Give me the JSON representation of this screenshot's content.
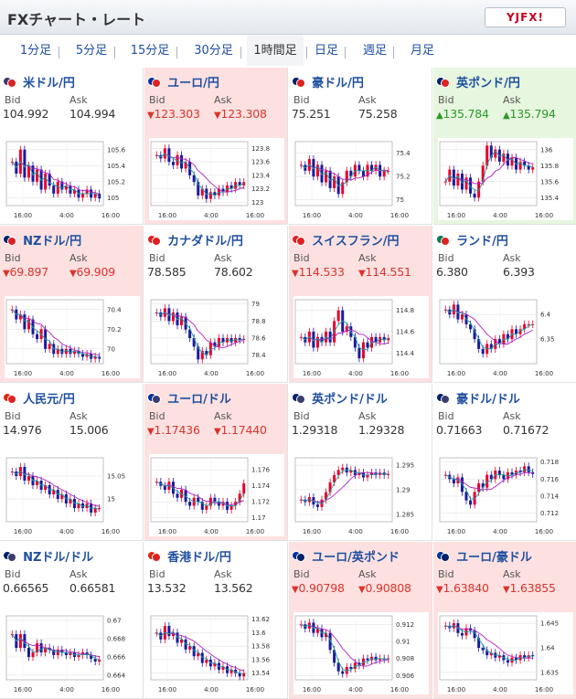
{
  "header": {
    "title": "FXチャート・レート",
    "logo_text": "YJFX!"
  },
  "tabs": [
    {
      "label": "1分足",
      "active": false
    },
    {
      "label": "5分足",
      "active": false
    },
    {
      "label": "15分足",
      "active": false
    },
    {
      "label": "30分足",
      "active": false
    },
    {
      "label": "1時間足",
      "active": true
    },
    {
      "label": "日足",
      "active": false
    },
    {
      "label": "週足",
      "active": false
    },
    {
      "label": "月足",
      "active": false
    }
  ],
  "labels": {
    "bid": "Bid",
    "ask": "Ask"
  },
  "arrows": {
    "down": "▼",
    "up": "▲"
  },
  "x_ticks": [
    "16:00",
    "4:00",
    "16:00"
  ],
  "colors": {
    "down_bg": "#fde1e1",
    "up_bg": "#e6f6df",
    "candle_up": "#e8002a",
    "candle_down": "#1a1a9c",
    "ma_1": "#b020c8",
    "ma_2": "#20a0a0"
  },
  "pairs": [
    {
      "name": "米ドル/円",
      "bid": "104.992",
      "ask": "104.994",
      "trend": "flat",
      "flag_colors": [
        "#3c3b6e",
        "#d22"
      ],
      "chart_data": {
        "type": "candlestick",
        "title": "",
        "yticks": [
          "105.6",
          "105.4",
          "105.2",
          "105"
        ],
        "ylim": [
          104.9,
          105.7
        ],
        "close": [
          105.45,
          105.3,
          105.6,
          105.25,
          105.4,
          105.2,
          105.35,
          105.1,
          105.3,
          105.15,
          105.05,
          105.2,
          105.1,
          105.15,
          105.05,
          105.1,
          105.0,
          105.05,
          105.1,
          105.0,
          105.05,
          104.99
        ]
      }
    },
    {
      "name": "ユーロ/円",
      "bid": "123.303",
      "ask": "123.308",
      "trend": "down",
      "flag_colors": [
        "#003399",
        "#d22"
      ],
      "chart_data": {
        "type": "candlestick",
        "title": "",
        "yticks": [
          "123.8",
          "123.6",
          "123.4",
          "123.2",
          "123"
        ],
        "ylim": [
          122.95,
          123.9
        ],
        "close": [
          123.7,
          123.65,
          123.8,
          123.6,
          123.55,
          123.7,
          123.5,
          123.6,
          123.4,
          123.3,
          123.1,
          123.2,
          123.05,
          123.15,
          123.1,
          123.2,
          123.15,
          123.25,
          123.2,
          123.3,
          123.25,
          123.3
        ]
      }
    },
    {
      "name": "豪ドル/円",
      "bid": "75.251",
      "ask": "75.258",
      "trend": "flat",
      "flag_colors": [
        "#012169",
        "#d22"
      ],
      "chart_data": {
        "type": "candlestick",
        "title": "",
        "yticks": [
          "75.4",
          "75.2",
          "75"
        ],
        "ylim": [
          74.95,
          75.5
        ],
        "close": [
          75.3,
          75.25,
          75.35,
          75.2,
          75.3,
          75.15,
          75.25,
          75.1,
          75.2,
          75.05,
          75.15,
          75.25,
          75.2,
          75.3,
          75.25,
          75.2,
          75.3,
          75.25,
          75.3,
          75.2,
          75.25,
          75.25
        ]
      }
    },
    {
      "name": "英ポンド/円",
      "bid": "135.784",
      "ask": "135.794",
      "trend": "up",
      "flag_colors": [
        "#012169",
        "#d22"
      ],
      "chart_data": {
        "type": "candlestick",
        "title": "",
        "yticks": [
          "136",
          "135.8",
          "135.6",
          "135.4"
        ],
        "ylim": [
          135.3,
          136.1
        ],
        "close": [
          135.6,
          135.75,
          135.55,
          135.7,
          135.5,
          135.65,
          135.45,
          135.4,
          135.6,
          135.8,
          136.05,
          135.9,
          136.0,
          135.85,
          135.95,
          135.8,
          135.9,
          135.75,
          135.85,
          135.8,
          135.75,
          135.78
        ]
      }
    },
    {
      "name": "NZドル/円",
      "bid": "69.897",
      "ask": "69.909",
      "trend": "down",
      "flag_colors": [
        "#012169",
        "#d22"
      ],
      "chart_data": {
        "type": "candlestick",
        "title": "",
        "yticks": [
          "70.4",
          "70.2",
          "70"
        ],
        "ylim": [
          69.85,
          70.5
        ],
        "close": [
          70.4,
          70.3,
          70.35,
          70.2,
          70.3,
          70.15,
          70.1,
          70.2,
          70.0,
          70.05,
          69.95,
          70.0,
          69.95,
          70.0,
          69.95,
          69.98,
          69.95,
          69.92,
          69.95,
          69.9,
          69.92,
          69.9
        ]
      }
    },
    {
      "name": "カナダドル/円",
      "bid": "78.585",
      "ask": "78.602",
      "trend": "flat",
      "flag_colors": [
        "#d22",
        "#d22"
      ],
      "chart_data": {
        "type": "candlestick",
        "title": "",
        "yticks": [
          "79",
          "78.8",
          "78.6",
          "78.4"
        ],
        "ylim": [
          78.3,
          79.05
        ],
        "close": [
          78.9,
          78.85,
          78.95,
          78.8,
          78.9,
          78.75,
          78.85,
          78.7,
          78.6,
          78.5,
          78.35,
          78.45,
          78.4,
          78.55,
          78.5,
          78.6,
          78.55,
          78.6,
          78.55,
          78.6,
          78.58,
          78.59
        ]
      }
    },
    {
      "name": "スイスフラン/円",
      "bid": "114.533",
      "ask": "114.551",
      "trend": "down",
      "flag_colors": [
        "#d22",
        "#d22"
      ],
      "chart_data": {
        "type": "candlestick",
        "title": "",
        "yticks": [
          "114.8",
          "114.6",
          "114.4"
        ],
        "ylim": [
          114.3,
          114.9
        ],
        "close": [
          114.55,
          114.5,
          114.6,
          114.45,
          114.55,
          114.5,
          114.6,
          114.5,
          114.7,
          114.8,
          114.6,
          114.65,
          114.55,
          114.45,
          114.35,
          114.5,
          114.45,
          114.55,
          114.5,
          114.55,
          114.52,
          114.54
        ]
      }
    },
    {
      "name": "ランド/円",
      "bid": "6.380",
      "ask": "6.393",
      "trend": "flat",
      "flag_colors": [
        "#007a4d",
        "#d22"
      ],
      "chart_data": {
        "type": "candlestick",
        "title": "",
        "yticks": [
          "6.4",
          "6.35"
        ],
        "ylim": [
          6.3,
          6.43
        ],
        "close": [
          6.41,
          6.4,
          6.42,
          6.39,
          6.4,
          6.38,
          6.37,
          6.35,
          6.33,
          6.32,
          6.34,
          6.33,
          6.35,
          6.34,
          6.36,
          6.35,
          6.37,
          6.36,
          6.37,
          6.38,
          6.38,
          6.38
        ]
      }
    },
    {
      "name": "人民元/円",
      "bid": "14.976",
      "ask": "15.006",
      "trend": "flat",
      "flag_colors": [
        "#de2910",
        "#d22"
      ],
      "chart_data": {
        "type": "candlestick",
        "title": "",
        "yticks": [
          "15.05",
          "15"
        ],
        "ylim": [
          14.95,
          15.09
        ],
        "close": [
          15.06,
          15.05,
          15.07,
          15.04,
          15.05,
          15.03,
          15.04,
          15.02,
          15.03,
          15.01,
          15.02,
          15.0,
          15.01,
          14.99,
          15.0,
          14.98,
          14.99,
          14.98,
          14.99,
          14.97,
          14.98,
          14.98
        ]
      }
    },
    {
      "name": "ユーロ/ドル",
      "bid": "1.17436",
      "ask": "1.17440",
      "trend": "down",
      "flag_colors": [
        "#003399",
        "#3c3b6e"
      ],
      "chart_data": {
        "type": "candlestick",
        "title": "",
        "yticks": [
          "1.176",
          "1.174",
          "1.172",
          "1.17"
        ],
        "ylim": [
          1.1695,
          1.1775
        ],
        "close": [
          1.1745,
          1.174,
          1.1735,
          1.1745,
          1.173,
          1.1725,
          1.1735,
          1.172,
          1.1715,
          1.1725,
          1.172,
          1.171,
          1.1715,
          1.1725,
          1.172,
          1.1715,
          1.172,
          1.171,
          1.1715,
          1.172,
          1.173,
          1.1743
        ]
      }
    },
    {
      "name": "英ポンド/ドル",
      "bid": "1.29318",
      "ask": "1.29328",
      "trend": "flat",
      "flag_colors": [
        "#012169",
        "#3c3b6e"
      ],
      "chart_data": {
        "type": "candlestick",
        "title": "",
        "yticks": [
          "1.295",
          "1.29",
          "1.285"
        ],
        "ylim": [
          1.2835,
          1.2965
        ],
        "close": [
          1.288,
          1.2875,
          1.2885,
          1.287,
          1.2865,
          1.288,
          1.2895,
          1.2915,
          1.293,
          1.294,
          1.2945,
          1.2935,
          1.294,
          1.293,
          1.2935,
          1.2925,
          1.293,
          1.2935,
          1.293,
          1.2935,
          1.293,
          1.2932
        ]
      }
    },
    {
      "name": "豪ドル/ドル",
      "bid": "0.71663",
      "ask": "0.71672",
      "trend": "flat",
      "flag_colors": [
        "#012169",
        "#3c3b6e"
      ],
      "chart_data": {
        "type": "candlestick",
        "title": "",
        "yticks": [
          "0.718",
          "0.716",
          "0.714",
          "0.712"
        ],
        "ylim": [
          0.711,
          0.7185
        ],
        "close": [
          0.7165,
          0.716,
          0.7155,
          0.7162,
          0.7145,
          0.7135,
          0.713,
          0.7145,
          0.7155,
          0.715,
          0.7165,
          0.716,
          0.717,
          0.7165,
          0.716,
          0.7168,
          0.7165,
          0.717,
          0.7168,
          0.7175,
          0.7168,
          0.7166
        ]
      }
    },
    {
      "name": "NZドル/ドル",
      "bid": "0.66565",
      "ask": "0.66581",
      "trend": "flat",
      "flag_colors": [
        "#012169",
        "#3c3b6e"
      ],
      "chart_data": {
        "type": "candlestick",
        "title": "",
        "yticks": [
          "0.67",
          "0.668",
          "0.666",
          "0.664"
        ],
        "ylim": [
          0.6635,
          0.6705
        ],
        "close": [
          0.6685,
          0.667,
          0.6685,
          0.667,
          0.666,
          0.6665,
          0.6675,
          0.6665,
          0.667,
          0.6668,
          0.6662,
          0.6668,
          0.6665,
          0.6662,
          0.6665,
          0.666,
          0.6662,
          0.6665,
          0.6662,
          0.6658,
          0.6655,
          0.6657
        ]
      }
    },
    {
      "name": "香港ドル/円",
      "bid": "13.532",
      "ask": "13.562",
      "trend": "flat",
      "flag_colors": [
        "#de2910",
        "#d22"
      ],
      "chart_data": {
        "type": "candlestick",
        "title": "",
        "yticks": [
          "13.62",
          "13.6",
          "13.58",
          "13.56",
          "13.54"
        ],
        "ylim": [
          13.53,
          13.625
        ],
        "close": [
          13.6,
          13.59,
          13.61,
          13.595,
          13.6,
          13.585,
          13.59,
          13.575,
          13.58,
          13.565,
          13.57,
          13.555,
          13.56,
          13.55,
          13.555,
          13.545,
          13.55,
          13.54,
          13.545,
          13.54,
          13.535,
          13.54
        ]
      }
    },
    {
      "name": "ユーロ/英ポンド",
      "bid": "0.90798",
      "ask": "0.90808",
      "trend": "down",
      "flag_colors": [
        "#003399",
        "#012169"
      ],
      "chart_data": {
        "type": "candlestick",
        "title": "",
        "yticks": [
          "0.912",
          "0.91",
          "0.908",
          "0.906"
        ],
        "ylim": [
          0.9055,
          0.913
        ],
        "close": [
          0.912,
          0.9115,
          0.9122,
          0.911,
          0.9115,
          0.9105,
          0.911,
          0.909,
          0.9075,
          0.9065,
          0.9062,
          0.907,
          0.9068,
          0.9075,
          0.9072,
          0.908,
          0.9078,
          0.9082,
          0.9078,
          0.908,
          0.9079,
          0.908
        ]
      }
    },
    {
      "name": "ユーロ/豪ドル",
      "bid": "1.63840",
      "ask": "1.63855",
      "trend": "down",
      "flag_colors": [
        "#003399",
        "#012169"
      ],
      "chart_data": {
        "type": "candlestick",
        "title": "",
        "yticks": [
          "1.645",
          "1.64",
          "1.635"
        ],
        "ylim": [
          1.6335,
          1.6465
        ],
        "close": [
          1.6445,
          1.644,
          1.645,
          1.643,
          1.6425,
          1.644,
          1.6435,
          1.642,
          1.64,
          1.6395,
          1.6385,
          1.639,
          1.638,
          1.6385,
          1.6375,
          1.637,
          1.638,
          1.6375,
          1.6385,
          1.638,
          1.6385,
          1.6384
        ]
      }
    }
  ]
}
